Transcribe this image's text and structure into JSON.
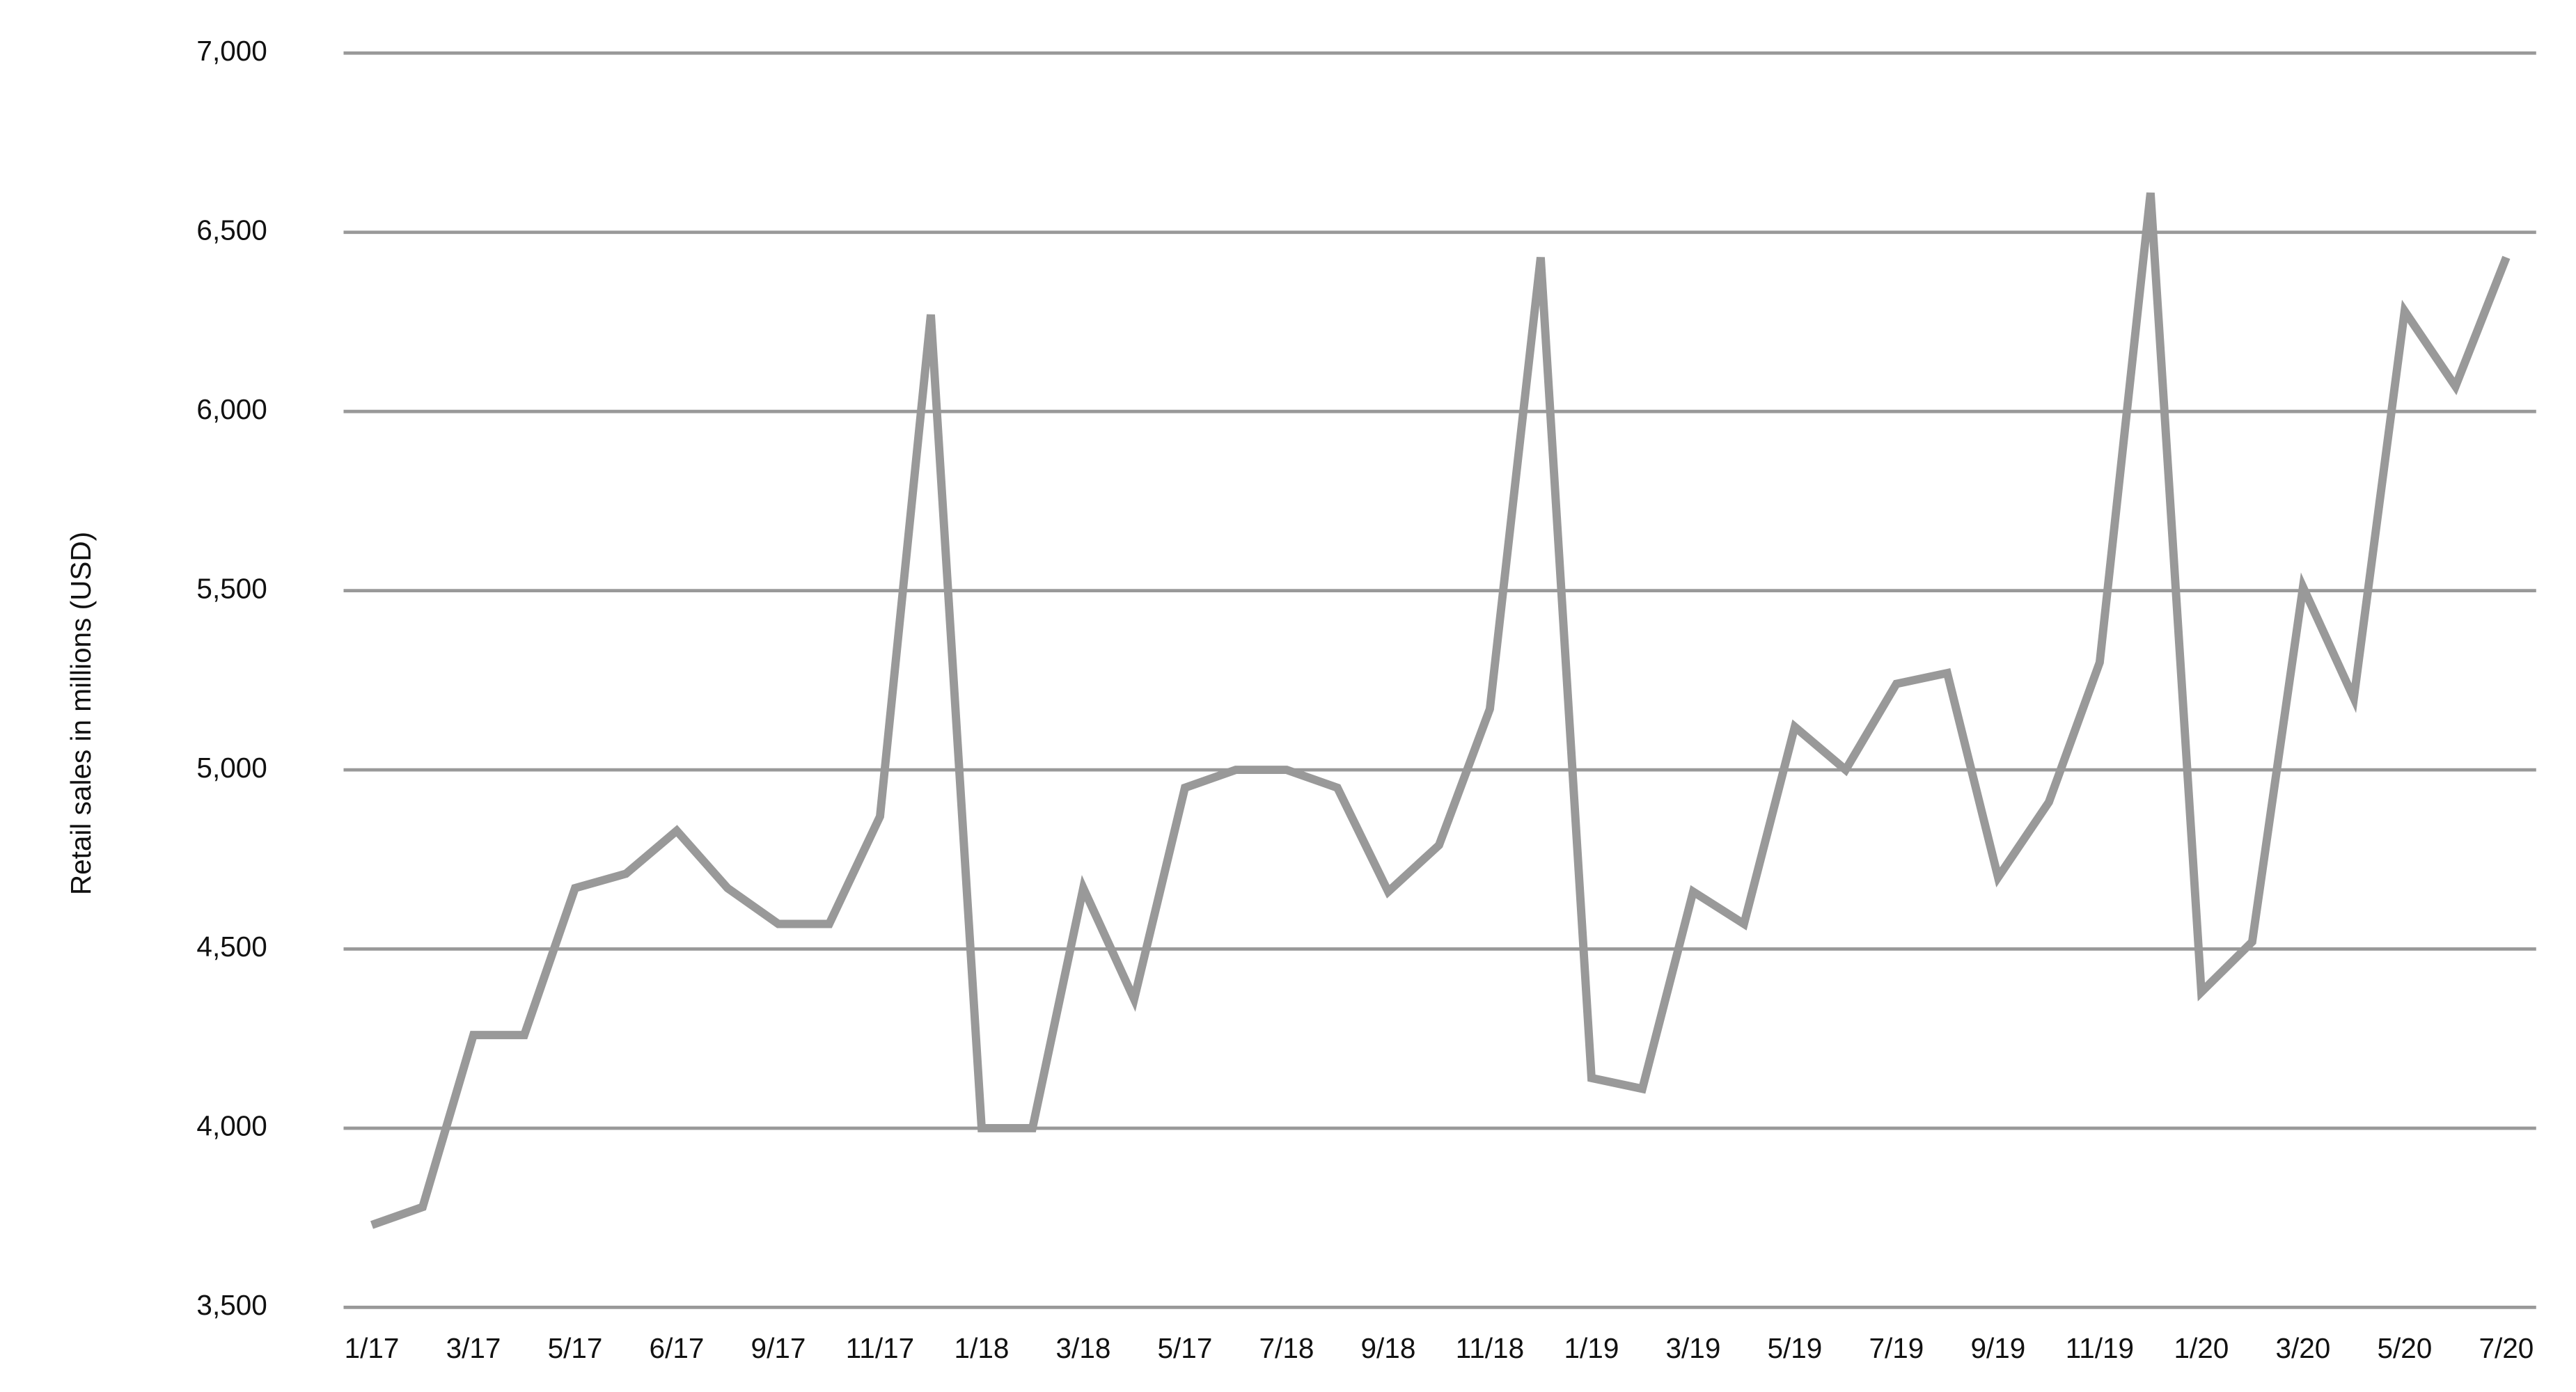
{
  "chart_data": {
    "type": "line",
    "y_label": "Retail sales in millions (USD)",
    "categories": [
      "1/17",
      null,
      "3/17",
      null,
      "5/17",
      null,
      "6/17",
      null,
      "9/17",
      null,
      "11/17",
      null,
      "1/18",
      null,
      "3/18",
      null,
      "5/17",
      null,
      "7/18",
      null,
      "9/18",
      null,
      "11/18",
      null,
      "1/19",
      null,
      "3/19",
      null,
      "5/19",
      null,
      "7/19",
      null,
      "9/19",
      null,
      "11/19",
      null,
      "1/20",
      null,
      "3/20",
      null,
      "5/20",
      null,
      "7/20"
    ],
    "series": [
      {
        "name": "Retail sales",
        "color": "#999999",
        "values": [
          3730,
          3780,
          4260,
          4260,
          4670,
          4710,
          4830,
          4670,
          4570,
          4570,
          4870,
          6270,
          4000,
          4000,
          4670,
          4360,
          4950,
          5000,
          5000,
          4950,
          4660,
          4790,
          5170,
          6430,
          4140,
          4110,
          4660,
          4570,
          5120,
          5000,
          5240,
          5270,
          4700,
          4910,
          5300,
          6610,
          4380,
          4520,
          5510,
          5200,
          6280,
          6070,
          6430
        ]
      }
    ],
    "ylim": [
      3500,
      7000
    ],
    "yticks": [
      {
        "value": 3500,
        "label": "3,500"
      },
      {
        "value": 4000,
        "label": "4,000"
      },
      {
        "value": 4500,
        "label": "4,500"
      },
      {
        "value": 5000,
        "label": "5,000"
      },
      {
        "value": 5500,
        "label": "5,500"
      },
      {
        "value": 6000,
        "label": "6,000"
      },
      {
        "value": 6500,
        "label": "6,500"
      },
      {
        "value": 7000,
        "label": "7,000"
      }
    ],
    "grid": true,
    "grid_color": "#999999"
  }
}
